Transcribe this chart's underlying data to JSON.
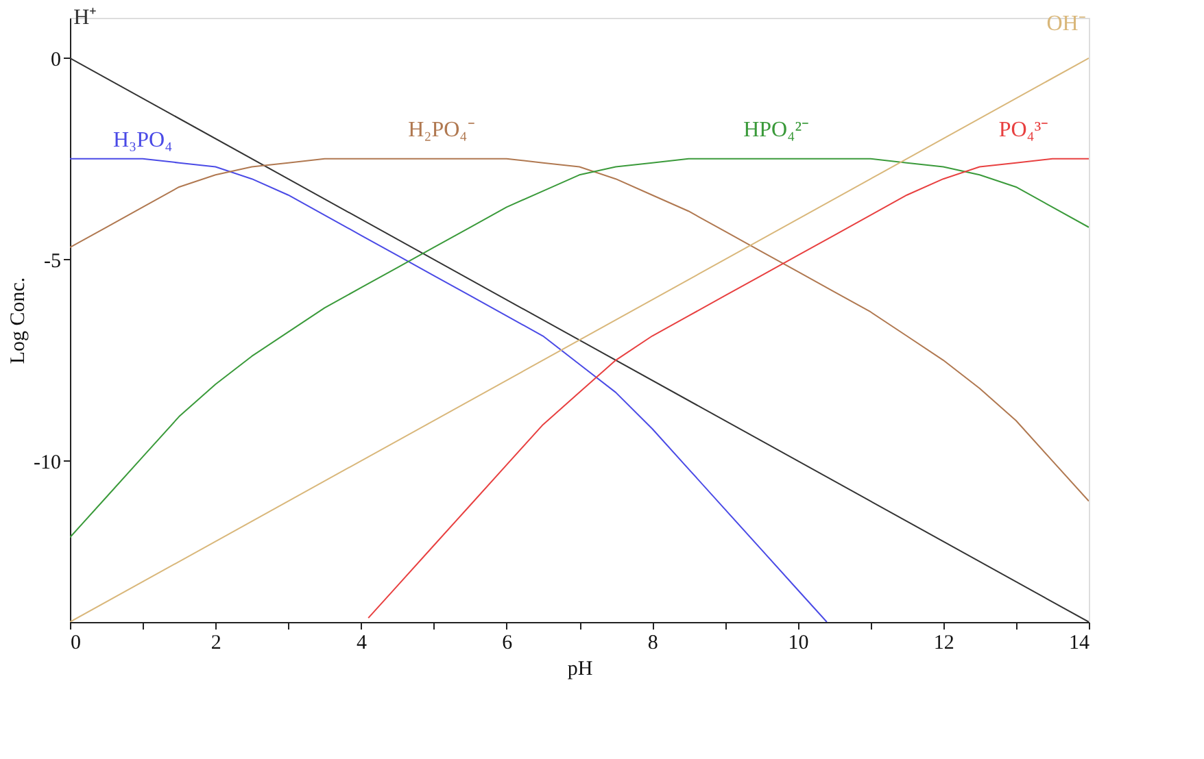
{
  "chart_data": {
    "type": "line",
    "xlabel": "pH",
    "ylabel": "Log Conc.",
    "xlim": [
      0,
      14
    ],
    "ylim": [
      -14,
      1
    ],
    "xticks": [
      0,
      {
        "value": 1,
        "label": null
      },
      2,
      {
        "value": 3,
        "label": null
      },
      4,
      {
        "value": 5,
        "label": null
      },
      6,
      {
        "value": 7,
        "label": null
      },
      8,
      {
        "value": 9,
        "label": null
      },
      10,
      {
        "value": 11,
        "label": null
      },
      12,
      {
        "value": 13,
        "label": null
      },
      14
    ],
    "yticks": [
      0,
      -5,
      -10
    ],
    "grid": false,
    "marker": "none",
    "line_style": "solid",
    "series": [
      {
        "name": "H⁺",
        "color": "#333333",
        "x": [
          0,
          14
        ],
        "values": [
          0,
          -14
        ]
      },
      {
        "name": "H₃PO₄",
        "color": "#4a4ae6",
        "x": [
          0,
          0.5,
          1,
          1.5,
          2,
          2.5,
          3,
          3.5,
          4,
          4.5,
          5,
          5.5,
          6,
          6.5,
          7,
          7.5,
          8,
          8.5,
          9,
          9.5,
          10,
          10.4
        ],
        "values": [
          -2.5,
          -2.5,
          -2.5,
          -2.6,
          -2.7,
          -3.0,
          -3.4,
          -3.9,
          -4.4,
          -4.9,
          -5.4,
          -5.9,
          -6.4,
          -6.9,
          -7.6,
          -8.3,
          -9.2,
          -10.2,
          -11.2,
          -12.2,
          -13.2,
          -14.0
        ]
      },
      {
        "name": "H₂PO₄⁻",
        "color": "#b07850",
        "x": [
          0,
          0.5,
          1,
          1.5,
          2,
          2.5,
          3,
          3.5,
          4,
          4.5,
          5,
          5.5,
          6,
          6.5,
          7,
          7.5,
          8,
          8.5,
          9,
          9.5,
          10,
          10.5,
          11,
          11.5,
          12,
          12.5,
          13,
          13.5,
          14
        ],
        "values": [
          -4.7,
          -4.2,
          -3.7,
          -3.2,
          -2.9,
          -2.7,
          -2.6,
          -2.5,
          -2.5,
          -2.5,
          -2.5,
          -2.5,
          -2.5,
          -2.6,
          -2.7,
          -3.0,
          -3.4,
          -3.8,
          -4.3,
          -4.8,
          -5.3,
          -5.8,
          -6.3,
          -6.9,
          -7.5,
          -8.2,
          -9.0,
          -10.0,
          -11.0
        ]
      },
      {
        "name": "HPO₄²⁻",
        "color": "#3a9a3a",
        "x": [
          0,
          0.5,
          1,
          1.5,
          2,
          2.5,
          3,
          3.5,
          4,
          4.5,
          5,
          5.5,
          6,
          6.5,
          7,
          7.5,
          8,
          8.5,
          9,
          9.5,
          10,
          10.5,
          11,
          11.5,
          12,
          12.5,
          13,
          13.5,
          14
        ],
        "values": [
          -11.9,
          -10.9,
          -9.9,
          -8.9,
          -8.1,
          -7.4,
          -6.8,
          -6.2,
          -5.7,
          -5.2,
          -4.7,
          -4.2,
          -3.7,
          -3.3,
          -2.9,
          -2.7,
          -2.6,
          -2.5,
          -2.5,
          -2.5,
          -2.5,
          -2.5,
          -2.5,
          -2.6,
          -2.7,
          -2.9,
          -3.2,
          -3.7,
          -4.2
        ]
      },
      {
        "name": "PO₄³⁻",
        "color": "#e84040",
        "x": [
          4.1,
          4.5,
          5,
          5.5,
          6,
          6.5,
          7,
          7.5,
          8,
          8.5,
          9,
          9.5,
          10,
          10.5,
          11,
          11.5,
          12,
          12.5,
          13,
          13.5,
          14
        ],
        "values": [
          -13.9,
          -13.1,
          -12.1,
          -11.1,
          -10.1,
          -9.1,
          -8.3,
          -7.5,
          -6.9,
          -6.4,
          -5.9,
          -5.4,
          -4.9,
          -4.4,
          -3.9,
          -3.4,
          -3.0,
          -2.7,
          -2.6,
          -2.5,
          -2.5
        ]
      },
      {
        "name": "OH⁻",
        "color": "#d9b77a",
        "x": [
          0,
          14
        ],
        "values": [
          -14,
          0
        ]
      }
    ]
  }
}
